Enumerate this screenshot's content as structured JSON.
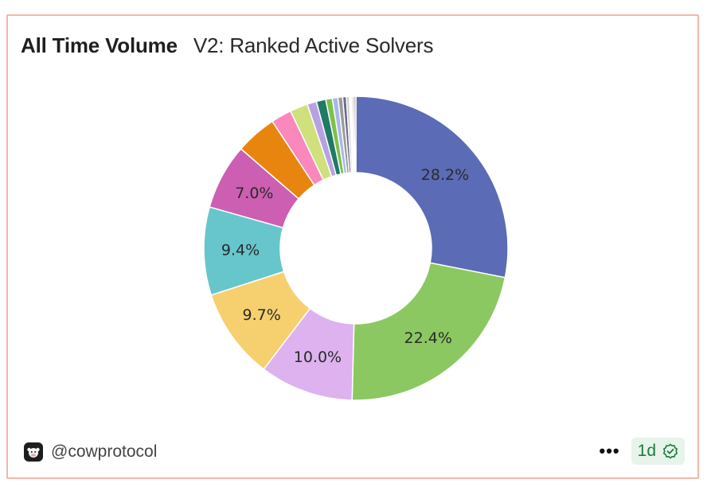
{
  "header": {
    "title": "All Time Volume",
    "subtitle": "V2: Ranked Active Solvers"
  },
  "footer": {
    "handle": "@cowprotocol",
    "more_label": "•••",
    "refresh_label": "1d"
  },
  "colors": {
    "border": "#f2b6aa",
    "badge_bg": "#e6f4ea",
    "badge_text": "#1e7a3c"
  },
  "chart_data": {
    "type": "pie",
    "donut": true,
    "title": "",
    "slices": [
      {
        "value": 28.2,
        "color": "#5b6bb5",
        "label": "28.2%"
      },
      {
        "value": 22.4,
        "color": "#8bc862",
        "label": "22.4%"
      },
      {
        "value": 10.0,
        "color": "#ddb2ef",
        "label": "10.0%"
      },
      {
        "value": 9.7,
        "color": "#f6d06e",
        "label": "9.7%"
      },
      {
        "value": 9.4,
        "color": "#66c6cc",
        "label": "9.4%"
      },
      {
        "value": 7.0,
        "color": "#cc5fb2",
        "label": "7.0%"
      },
      {
        "value": 4.4,
        "color": "#e8850f",
        "label": ""
      },
      {
        "value": 2.2,
        "color": "#fa88bc",
        "label": ""
      },
      {
        "value": 1.9,
        "color": "#cfe07c",
        "label": ""
      },
      {
        "value": 1.0,
        "color": "#b8a1e3",
        "label": ""
      },
      {
        "value": 1.0,
        "color": "#1f7a66",
        "label": ""
      },
      {
        "value": 0.7,
        "color": "#7ec04c",
        "label": ""
      },
      {
        "value": 0.6,
        "color": "#a8b7e6",
        "label": ""
      },
      {
        "value": 0.5,
        "color": "#9a9a9a",
        "label": ""
      },
      {
        "value": 0.4,
        "color": "#6a6a8a",
        "label": ""
      },
      {
        "value": 0.3,
        "color": "#c8c8c8",
        "label": ""
      },
      {
        "value": 0.3,
        "color": "#ffffff",
        "label": ""
      },
      {
        "value": 0.2,
        "color": "#d4b89b",
        "label": ""
      },
      {
        "value": 0.2,
        "color": "#888888",
        "label": ""
      }
    ]
  }
}
